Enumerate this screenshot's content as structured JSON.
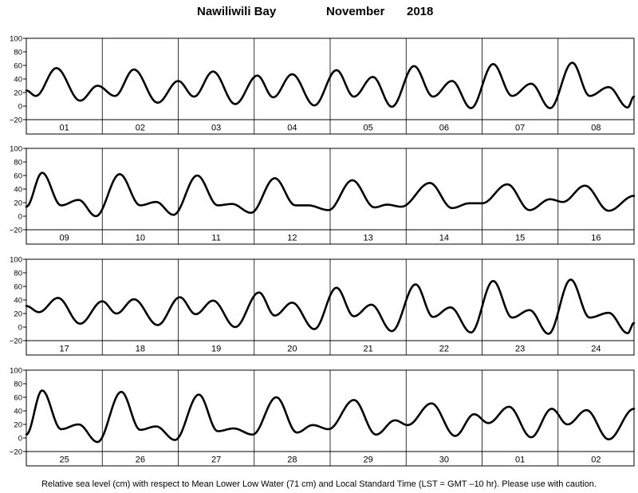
{
  "title": {
    "station": "Nawiliwili Bay",
    "month": "November",
    "year": "2018"
  },
  "footer": "Relative sea level (cm) with respect to Mean Lower Low Water (71 cm) and Local Standard Time (LST = GMT –10 hr). Please use with caution.",
  "chart_data": {
    "type": "line",
    "ylim": [
      -20,
      100
    ],
    "yticks": [
      -20,
      0,
      20,
      40,
      60,
      80,
      100
    ],
    "ytick_labels": [
      "−20",
      "0",
      "20",
      "40",
      "60",
      "80",
      "100"
    ],
    "grid": "vertical lines at day boundaries",
    "x_unit": "hour of day (LST)",
    "panels": [
      {
        "days": [
          "01",
          "02",
          "03",
          "04",
          "05",
          "06",
          "07",
          "08"
        ],
        "extrema": [
          {
            "day": 1,
            "hour": 0,
            "level": 23
          },
          {
            "day": 1,
            "hour": 3,
            "level": 15
          },
          {
            "day": 1,
            "hour": 9.5,
            "level": 56
          },
          {
            "day": 1,
            "hour": 17,
            "level": 8
          },
          {
            "day": 1,
            "hour": 22.5,
            "level": 30
          },
          {
            "day": 2,
            "hour": 4,
            "level": 15
          },
          {
            "day": 2,
            "hour": 10,
            "level": 54
          },
          {
            "day": 2,
            "hour": 17.5,
            "level": 5
          },
          {
            "day": 3,
            "hour": 0,
            "level": 37
          },
          {
            "day": 3,
            "hour": 5,
            "level": 14
          },
          {
            "day": 3,
            "hour": 11,
            "level": 51
          },
          {
            "day": 3,
            "hour": 18,
            "level": 3
          },
          {
            "day": 4,
            "hour": 1,
            "level": 45
          },
          {
            "day": 4,
            "hour": 6,
            "level": 13
          },
          {
            "day": 4,
            "hour": 12,
            "level": 47
          },
          {
            "day": 4,
            "hour": 19,
            "level": 1
          },
          {
            "day": 5,
            "hour": 2,
            "level": 53
          },
          {
            "day": 5,
            "hour": 7.5,
            "level": 14
          },
          {
            "day": 5,
            "hour": 13.5,
            "level": 43
          },
          {
            "day": 5,
            "hour": 19.5,
            "level": -1
          },
          {
            "day": 6,
            "hour": 2.5,
            "level": 59
          },
          {
            "day": 6,
            "hour": 8.5,
            "level": 14
          },
          {
            "day": 6,
            "hour": 14.5,
            "level": 37
          },
          {
            "day": 6,
            "hour": 20.5,
            "level": -3
          },
          {
            "day": 7,
            "hour": 3.5,
            "level": 62
          },
          {
            "day": 7,
            "hour": 9.5,
            "level": 15
          },
          {
            "day": 7,
            "hour": 15.5,
            "level": 33
          },
          {
            "day": 7,
            "hour": 21.5,
            "level": -3
          },
          {
            "day": 8,
            "hour": 4.5,
            "level": 64
          },
          {
            "day": 8,
            "hour": 10,
            "level": 15
          },
          {
            "day": 8,
            "hour": 16,
            "level": 28
          },
          {
            "day": 8,
            "hour": 22,
            "level": -2
          },
          {
            "day": 8,
            "hour": 24,
            "level": 14
          }
        ]
      },
      {
        "days": [
          "09",
          "10",
          "11",
          "12",
          "13",
          "14",
          "15",
          "16"
        ],
        "extrema": [
          {
            "day": 1,
            "hour": 0,
            "level": 14
          },
          {
            "day": 1,
            "hour": 5,
            "level": 64
          },
          {
            "day": 1,
            "hour": 11,
            "level": 16
          },
          {
            "day": 1,
            "hour": 16.5,
            "level": 24
          },
          {
            "day": 1,
            "hour": 22,
            "level": 0
          },
          {
            "day": 2,
            "hour": 5.5,
            "level": 62
          },
          {
            "day": 2,
            "hour": 12,
            "level": 16
          },
          {
            "day": 2,
            "hour": 17,
            "level": 21
          },
          {
            "day": 2,
            "hour": 22.5,
            "level": 2
          },
          {
            "day": 3,
            "hour": 6,
            "level": 60
          },
          {
            "day": 3,
            "hour": 12.5,
            "level": 16
          },
          {
            "day": 3,
            "hour": 17,
            "level": 18
          },
          {
            "day": 3,
            "hour": 23,
            "level": 5
          },
          {
            "day": 4,
            "hour": 6.5,
            "level": 56
          },
          {
            "day": 4,
            "hour": 13,
            "level": 16
          },
          {
            "day": 4,
            "hour": 17,
            "level": 16
          },
          {
            "day": 4,
            "hour": 23.5,
            "level": 9
          },
          {
            "day": 5,
            "hour": 7,
            "level": 53
          },
          {
            "day": 5,
            "hour": 14,
            "level": 13
          },
          {
            "day": 5,
            "hour": 18,
            "level": 17
          },
          {
            "day": 5,
            "hour": 22.5,
            "level": 14
          },
          {
            "day": 6,
            "hour": 7.5,
            "level": 49
          },
          {
            "day": 6,
            "hour": 14.5,
            "level": 12
          },
          {
            "day": 6,
            "hour": 20,
            "level": 19
          },
          {
            "day": 7,
            "hour": 0,
            "level": 19
          },
          {
            "day": 7,
            "hour": 8,
            "level": 47
          },
          {
            "day": 7,
            "hour": 15,
            "level": 9
          },
          {
            "day": 7,
            "hour": 21.5,
            "level": 25
          },
          {
            "day": 8,
            "hour": 1.5,
            "level": 21
          },
          {
            "day": 8,
            "hour": 8.5,
            "level": 45
          },
          {
            "day": 8,
            "hour": 16,
            "level": 8
          },
          {
            "day": 8,
            "hour": 24,
            "level": 30
          }
        ]
      },
      {
        "days": [
          "17",
          "18",
          "19",
          "20",
          "21",
          "22",
          "23",
          "24"
        ],
        "extrema": [
          {
            "day": 1,
            "hour": 0,
            "level": 31
          },
          {
            "day": 1,
            "hour": 4,
            "level": 22
          },
          {
            "day": 1,
            "hour": 10,
            "level": 43
          },
          {
            "day": 1,
            "hour": 17,
            "level": 5
          },
          {
            "day": 2,
            "hour": 0,
            "level": 38
          },
          {
            "day": 2,
            "hour": 4.5,
            "level": 20
          },
          {
            "day": 2,
            "hour": 10,
            "level": 41
          },
          {
            "day": 2,
            "hour": 17.5,
            "level": 3
          },
          {
            "day": 3,
            "hour": 0.5,
            "level": 44
          },
          {
            "day": 3,
            "hour": 5.5,
            "level": 19
          },
          {
            "day": 3,
            "hour": 11,
            "level": 39
          },
          {
            "day": 3,
            "hour": 18,
            "level": 0
          },
          {
            "day": 4,
            "hour": 1.5,
            "level": 51
          },
          {
            "day": 4,
            "hour": 6.5,
            "level": 17
          },
          {
            "day": 4,
            "hour": 12,
            "level": 36
          },
          {
            "day": 4,
            "hour": 19,
            "level": -3
          },
          {
            "day": 5,
            "hour": 2,
            "level": 58
          },
          {
            "day": 5,
            "hour": 7.5,
            "level": 16
          },
          {
            "day": 5,
            "hour": 13,
            "level": 33
          },
          {
            "day": 5,
            "hour": 19.5,
            "level": -6
          },
          {
            "day": 6,
            "hour": 3,
            "level": 63
          },
          {
            "day": 6,
            "hour": 8.5,
            "level": 15
          },
          {
            "day": 6,
            "hour": 14,
            "level": 29
          },
          {
            "day": 6,
            "hour": 20.5,
            "level": -8
          },
          {
            "day": 7,
            "hour": 3.5,
            "level": 68
          },
          {
            "day": 7,
            "hour": 9.5,
            "level": 14
          },
          {
            "day": 7,
            "hour": 15,
            "level": 25
          },
          {
            "day": 7,
            "hour": 21,
            "level": -10
          },
          {
            "day": 8,
            "hour": 4,
            "level": 70
          },
          {
            "day": 8,
            "hour": 10,
            "level": 14
          },
          {
            "day": 8,
            "hour": 16,
            "level": 21
          },
          {
            "day": 8,
            "hour": 22,
            "level": -9
          },
          {
            "day": 8,
            "hour": 24,
            "level": 6
          }
        ]
      },
      {
        "days": [
          "25",
          "26",
          "27",
          "28",
          "29",
          "30",
          "01",
          "02"
        ],
        "extrema": [
          {
            "day": 1,
            "hour": 0,
            "level": 5
          },
          {
            "day": 1,
            "hour": 5,
            "level": 70
          },
          {
            "day": 1,
            "hour": 11,
            "level": 13
          },
          {
            "day": 1,
            "hour": 16.5,
            "level": 20
          },
          {
            "day": 1,
            "hour": 22.5,
            "level": -6
          },
          {
            "day": 2,
            "hour": 6,
            "level": 68
          },
          {
            "day": 2,
            "hour": 12,
            "level": 12
          },
          {
            "day": 2,
            "hour": 17,
            "level": 17
          },
          {
            "day": 2,
            "hour": 23,
            "level": -3
          },
          {
            "day": 3,
            "hour": 6.5,
            "level": 64
          },
          {
            "day": 3,
            "hour": 12.5,
            "level": 10
          },
          {
            "day": 3,
            "hour": 17.5,
            "level": 14
          },
          {
            "day": 3,
            "hour": 23.5,
            "level": 5
          },
          {
            "day": 4,
            "hour": 7,
            "level": 60
          },
          {
            "day": 4,
            "hour": 13.5,
            "level": 8
          },
          {
            "day": 4,
            "hour": 18.5,
            "level": 19
          },
          {
            "day": 4,
            "hour": 23.5,
            "level": 13
          },
          {
            "day": 5,
            "hour": 7.5,
            "level": 56
          },
          {
            "day": 5,
            "hour": 14.5,
            "level": 5
          },
          {
            "day": 5,
            "hour": 20.5,
            "level": 26
          },
          {
            "day": 6,
            "hour": 0.5,
            "level": 19
          },
          {
            "day": 6,
            "hour": 8,
            "level": 51
          },
          {
            "day": 6,
            "hour": 15.5,
            "level": 3
          },
          {
            "day": 6,
            "hour": 21.5,
            "level": 35
          },
          {
            "day": 7,
            "hour": 2,
            "level": 22
          },
          {
            "day": 7,
            "hour": 8.5,
            "level": 46
          },
          {
            "day": 7,
            "hour": 15.5,
            "level": 1
          },
          {
            "day": 7,
            "hour": 22,
            "level": 43
          },
          {
            "day": 8,
            "hour": 3,
            "level": 20
          },
          {
            "day": 8,
            "hour": 9,
            "level": 41
          },
          {
            "day": 8,
            "hour": 16,
            "level": -2
          },
          {
            "day": 8,
            "hour": 24,
            "level": 43
          }
        ]
      }
    ]
  }
}
